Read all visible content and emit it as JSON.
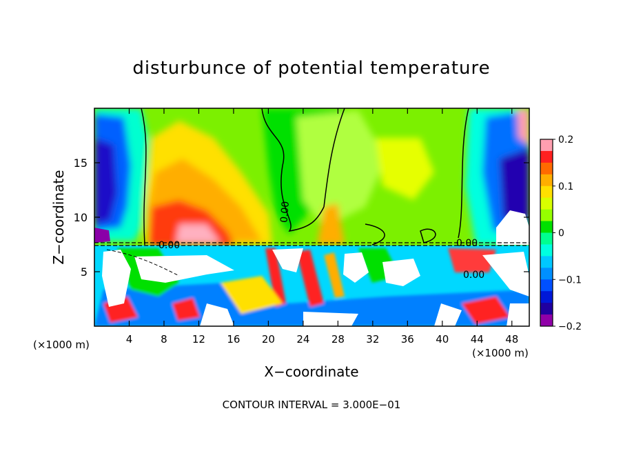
{
  "chart_data": {
    "type": "heatmap",
    "title": "disturbunce of potential temperature",
    "xlabel": "X−coordinate",
    "ylabel": "Z−coordinate",
    "x_unit": "(×1000 m)",
    "x_unit_right": "(×1000 m)",
    "xlim": [
      0,
      50
    ],
    "ylim": [
      0,
      20
    ],
    "x_ticks": [
      4,
      8,
      12,
      16,
      20,
      24,
      28,
      32,
      36,
      40,
      44,
      48
    ],
    "y_ticks": [
      5,
      10,
      15
    ],
    "colorbar": {
      "range": [
        -0.2,
        0.2
      ],
      "tick_labels": [
        "0.2",
        "0.1",
        "0",
        "−0.1",
        "−0.2"
      ],
      "tick_values": [
        0.2,
        0.1,
        0,
        -0.1,
        -0.2
      ],
      "levels": [
        {
          "min": 0.175,
          "max": 0.2,
          "color": "#ff9fb0"
        },
        {
          "min": 0.15,
          "max": 0.175,
          "color": "#ff2020"
        },
        {
          "min": 0.125,
          "max": 0.15,
          "color": "#ff6a00"
        },
        {
          "min": 0.1,
          "max": 0.125,
          "color": "#ffae00"
        },
        {
          "min": 0.075,
          "max": 0.1,
          "color": "#ffe000"
        },
        {
          "min": 0.05,
          "max": 0.075,
          "color": "#d8ff00"
        },
        {
          "min": 0.025,
          "max": 0.05,
          "color": "#96ff00"
        },
        {
          "min": 0.0,
          "max": 0.025,
          "color": "#00e000"
        },
        {
          "min": -0.025,
          "max": 0.0,
          "color": "#00ff90"
        },
        {
          "min": -0.05,
          "max": -0.025,
          "color": "#00ffe0"
        },
        {
          "min": -0.075,
          "max": -0.05,
          "color": "#00c8ff"
        },
        {
          "min": -0.1,
          "max": -0.075,
          "color": "#0090ff"
        },
        {
          "min": -0.125,
          "max": -0.1,
          "color": "#0050ff"
        },
        {
          "min": -0.15,
          "max": -0.125,
          "color": "#0018d8"
        },
        {
          "min": -0.175,
          "max": -0.15,
          "color": "#2000a0"
        },
        {
          "min": -0.2,
          "max": -0.175,
          "color": "#9000a8"
        }
      ]
    },
    "contour_labels": [
      "0.00",
      "0.00",
      "0.00",
      "0.00"
    ],
    "contour_interval_text": "CONTOUR INTERVAL = 3.000E−01"
  }
}
